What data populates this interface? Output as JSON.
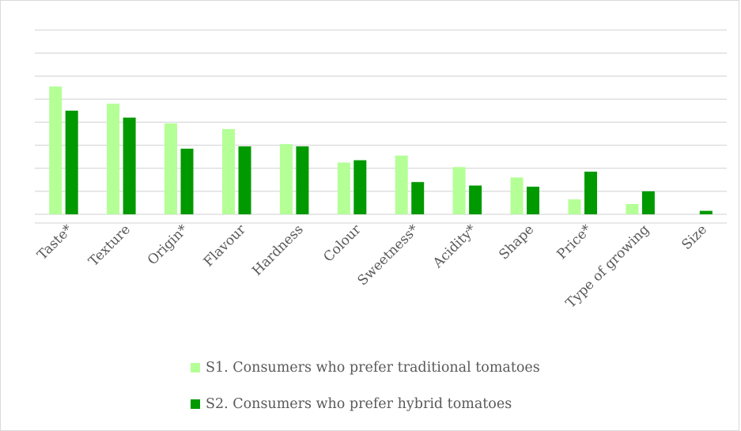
{
  "chart_data": {
    "type": "bar",
    "categories": [
      "Taste*",
      "Texture",
      "Origin*",
      "Flavour",
      "Hardness",
      "Colour",
      "Sweetness*",
      "Acidity*",
      "Shape",
      "Price*",
      "Type of growing",
      "Size"
    ],
    "series": [
      {
        "name": "S1. Consumers who prefer traditional tomatoes",
        "color": "#b4ff96",
        "values": [
          5.55,
          4.8,
          3.95,
          3.7,
          3.05,
          2.25,
          2.55,
          2.05,
          1.6,
          0.65,
          0.45,
          0.0
        ]
      },
      {
        "name": "S2. Consumers who prefer hybrid tomatoes",
        "color": "#009900",
        "values": [
          4.5,
          4.2,
          2.85,
          2.95,
          2.95,
          2.35,
          1.4,
          1.25,
          1.2,
          1.85,
          1.0,
          0.15
        ]
      }
    ],
    "ylim": [
      0,
      8
    ],
    "grid": true,
    "legend_position": "bottom",
    "title": "",
    "xlabel": "",
    "ylabel": ""
  }
}
